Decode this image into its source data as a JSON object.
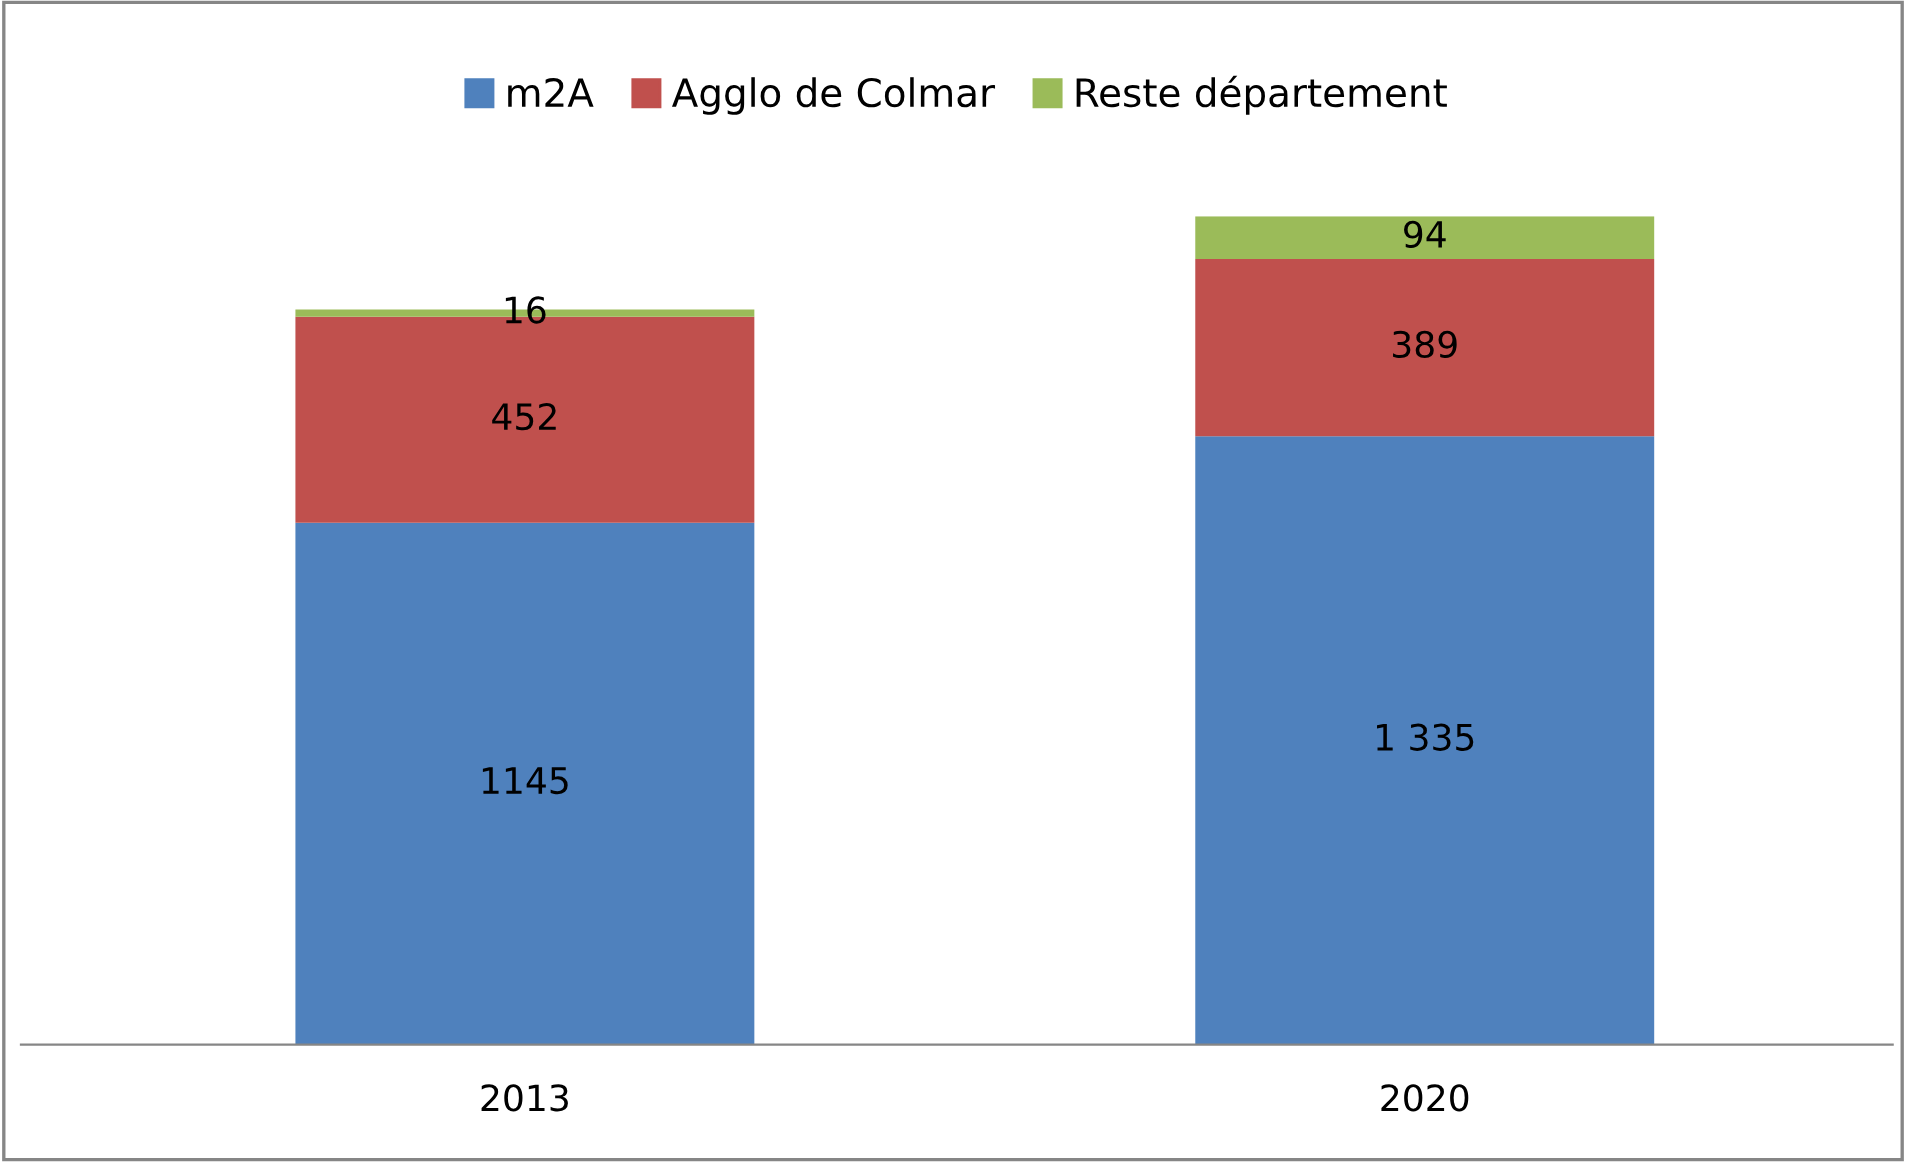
{
  "chart_data": {
    "type": "bar",
    "stacked": true,
    "categories": [
      "2013",
      "2020"
    ],
    "series": [
      {
        "name": "m2A",
        "color": "#4f81bd",
        "values": [
          1145,
          1335
        ],
        "value_labels": [
          "1145",
          "1 335"
        ]
      },
      {
        "name": "Agglo de Colmar",
        "color": "#c0504d",
        "values": [
          452,
          389
        ],
        "value_labels": [
          "452",
          "389"
        ]
      },
      {
        "name": "Reste département",
        "color": "#9bbb59",
        "values": [
          16,
          94
        ],
        "value_labels": [
          "16",
          "94"
        ]
      }
    ],
    "legend": "top"
  }
}
